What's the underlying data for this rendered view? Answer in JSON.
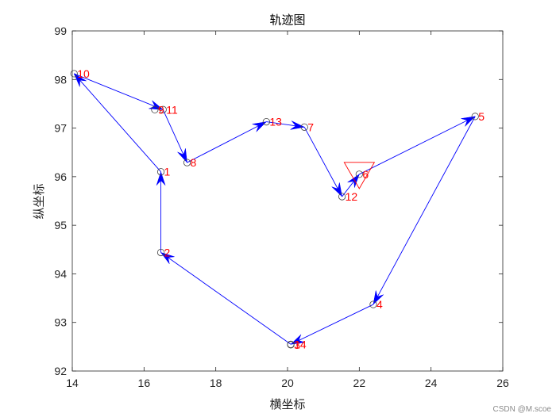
{
  "chart_data": {
    "type": "line",
    "title": "轨迹图",
    "xlabel": "横坐标",
    "ylabel": "纵坐标",
    "xlim": [
      14,
      26
    ],
    "ylim": [
      92,
      99
    ],
    "xticks": [
      14,
      16,
      18,
      20,
      22,
      24,
      26
    ],
    "yticks": [
      92,
      93,
      94,
      95,
      96,
      97,
      98,
      99
    ],
    "grid": false,
    "points": [
      {
        "label": "1",
        "x": 16.47,
        "y": 96.1
      },
      {
        "label": "2",
        "x": 16.47,
        "y": 94.44
      },
      {
        "label": "3",
        "x": 20.09,
        "y": 92.54
      },
      {
        "label": "4",
        "x": 22.39,
        "y": 93.37
      },
      {
        "label": "5",
        "x": 25.23,
        "y": 97.24
      },
      {
        "label": "6",
        "x": 22.0,
        "y": 96.05
      },
      {
        "label": "7",
        "x": 20.47,
        "y": 97.02
      },
      {
        "label": "8",
        "x": 17.2,
        "y": 96.29
      },
      {
        "label": "9",
        "x": 16.3,
        "y": 97.38
      },
      {
        "label": "10",
        "x": 14.05,
        "y": 98.12
      },
      {
        "label": "11",
        "x": 16.53,
        "y": 97.38
      },
      {
        "label": "12",
        "x": 21.52,
        "y": 95.59
      },
      {
        "label": "13",
        "x": 19.41,
        "y": 97.13
      },
      {
        "label": "14",
        "x": 20.09,
        "y": 92.55
      }
    ],
    "route": [
      "6",
      "5",
      "4",
      "14",
      "2",
      "1",
      "10",
      "11",
      "8",
      "13",
      "7",
      "12",
      "6"
    ],
    "start_marker": {
      "shape": "triangle-down",
      "x": 22.0,
      "y": 96.05,
      "color": "#ff0000"
    },
    "colors": {
      "path": "#0000ff",
      "labels": "#ff0000",
      "markers": "#404040"
    }
  },
  "watermark": "CSDN @M.scoe"
}
